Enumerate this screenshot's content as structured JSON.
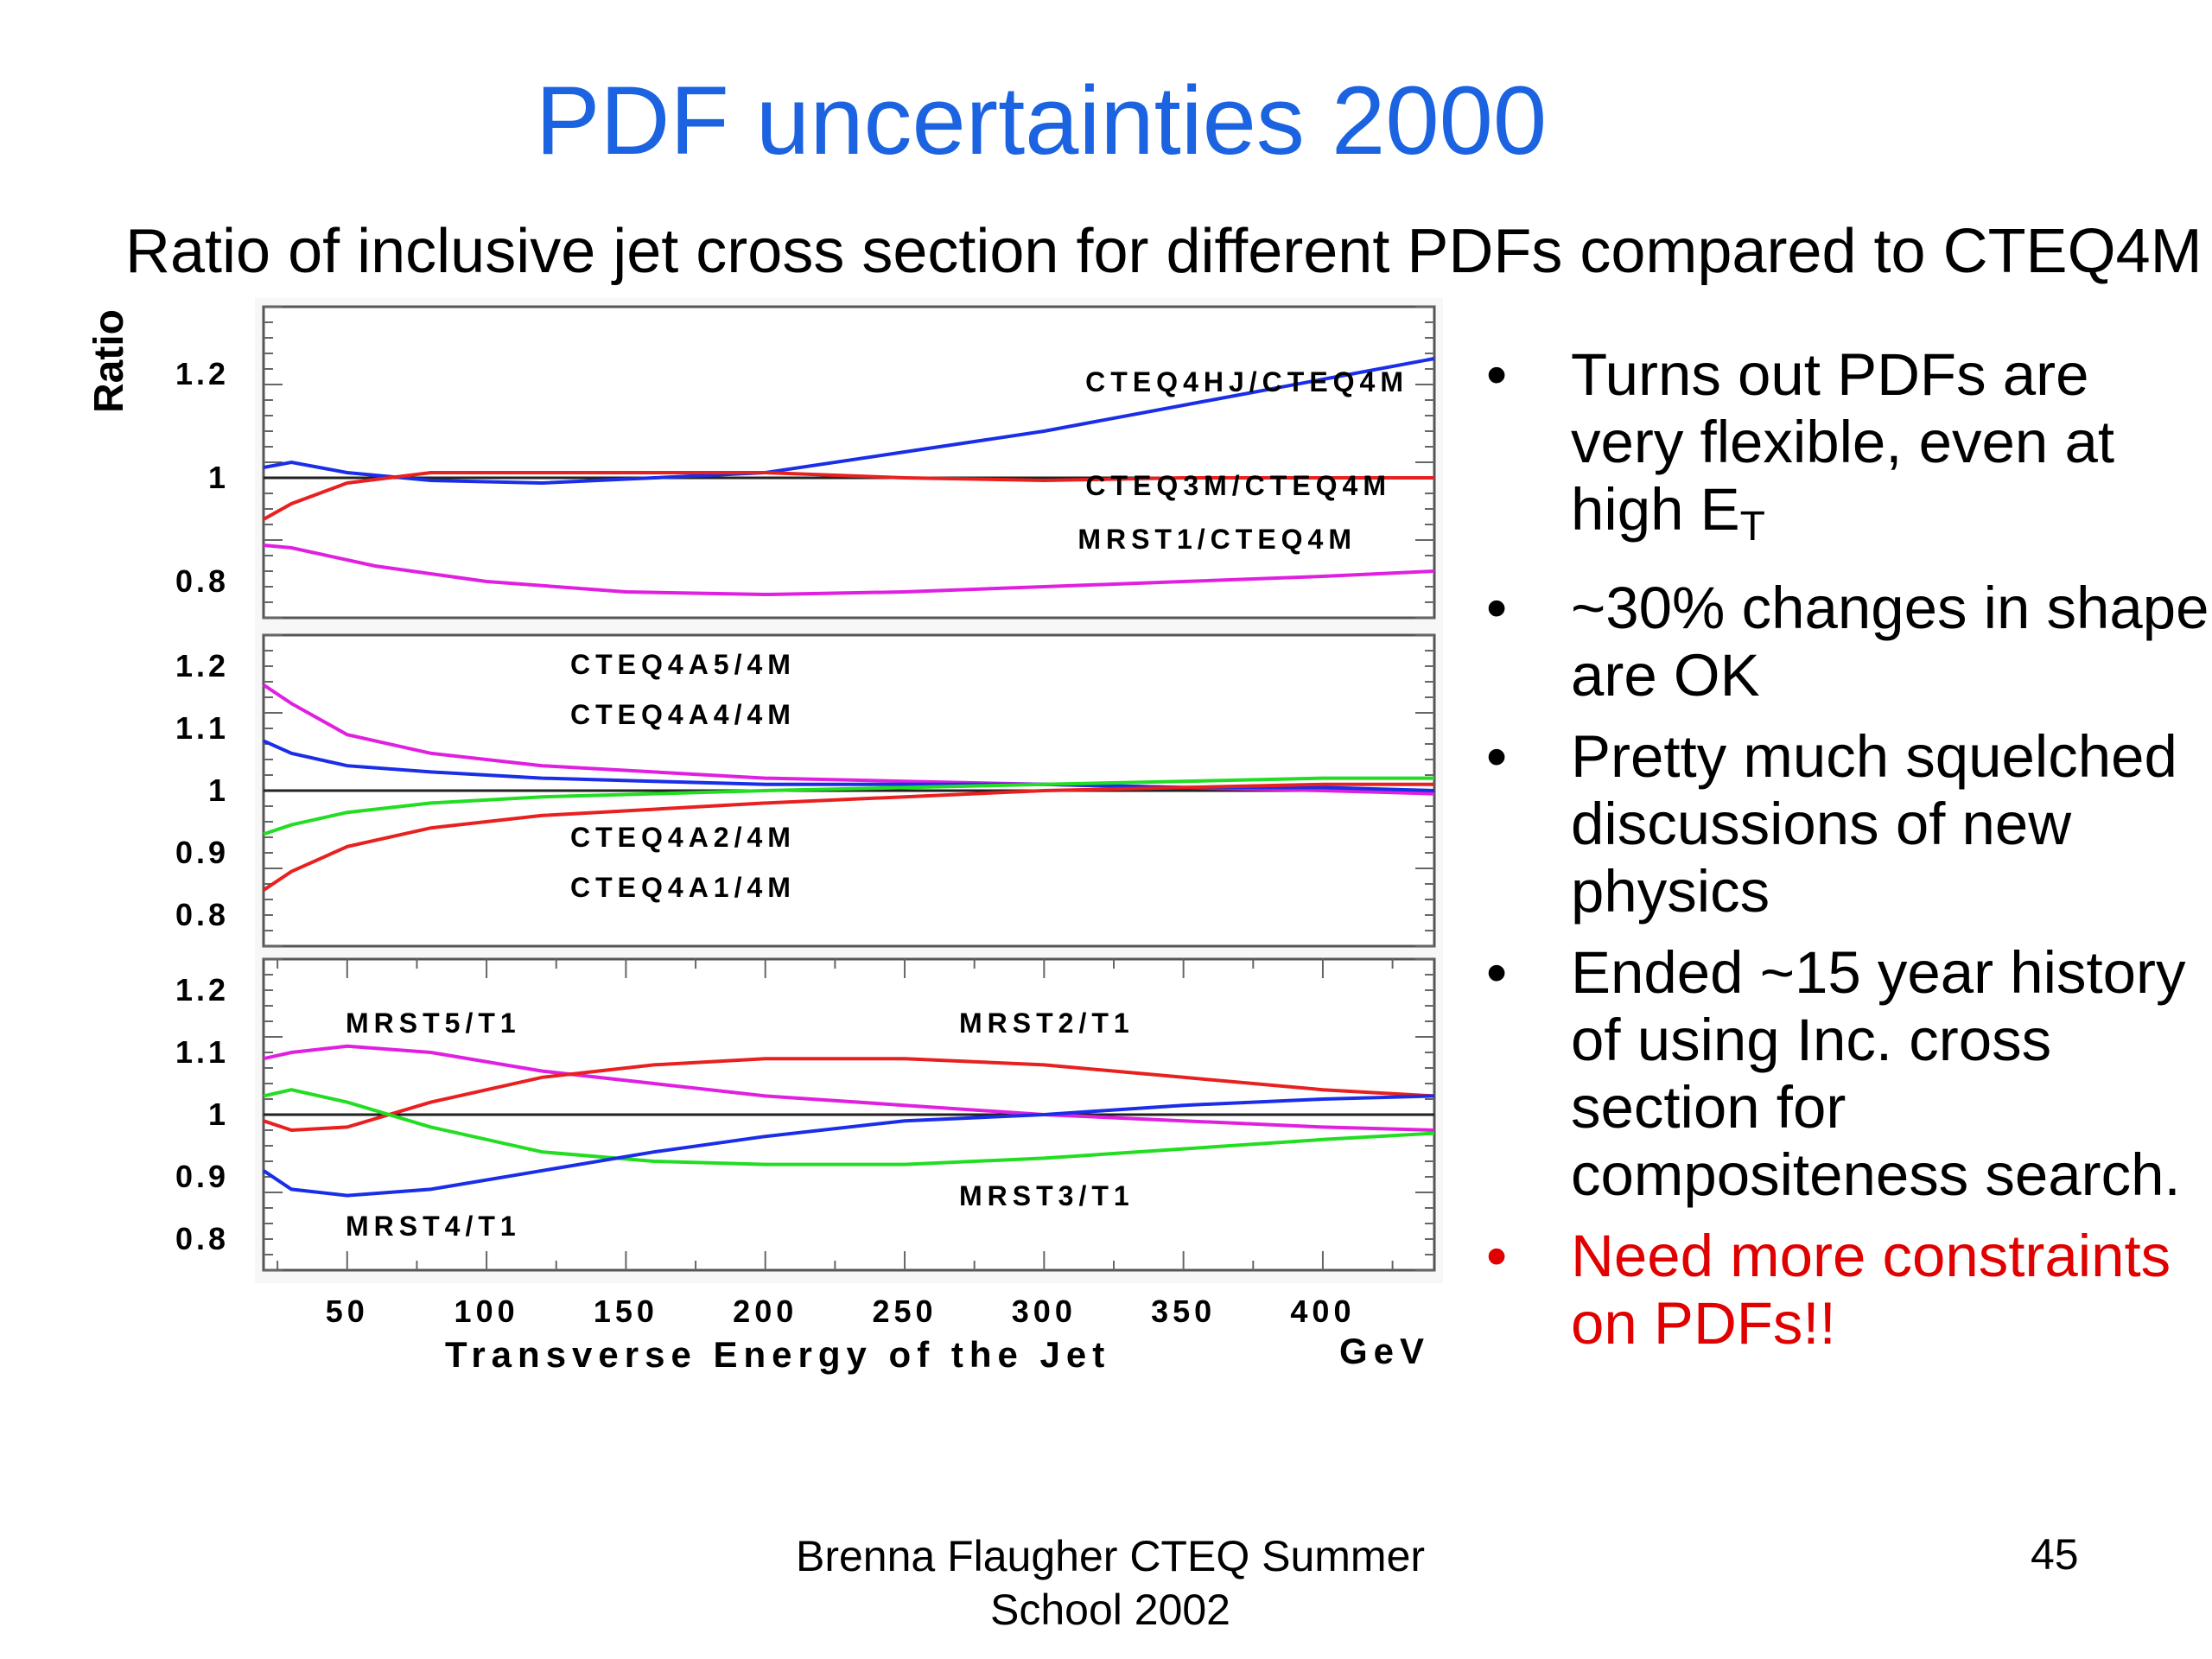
{
  "slide": {
    "title": "PDF uncertainties 2000",
    "subtitle": "Ratio of inclusive jet cross section for different PDFs compared to CTEQ4M",
    "bullets": [
      {
        "text": "Turns out PDFs are very flexible, even at high E",
        "sub": "T",
        "color": "#000000"
      },
      {
        "text": "~30% changes in shape are OK",
        "color": "#000000"
      },
      {
        "text": "Pretty much squelched discussions of new physics",
        "color": "#000000"
      },
      {
        "text": "Ended ~15 year history of using Inc. cross section for compositeness search.",
        "color": "#000000"
      },
      {
        "text": "Need more constraints on PDFs!!",
        "color": "#e00000"
      }
    ],
    "footer": "Brenna Flaugher CTEQ Summer School 2002",
    "page_number": "45"
  },
  "chart_data": [
    {
      "type": "line",
      "ylabel": "Ratio",
      "xlim": [
        20,
        440
      ],
      "ylim": [
        0.73,
        1.33
      ],
      "yticks": [
        0.8,
        1,
        1.2
      ],
      "ytick_labels": [
        "0.8",
        "1",
        "1.2"
      ],
      "reference_line": 1,
      "series": [
        {
          "name": "CTEQ4HJ/CTEQ4M",
          "color": "#1a2ee8",
          "x": [
            20,
            30,
            50,
            80,
            120,
            160,
            200,
            250,
            300,
            350,
            400,
            440
          ],
          "y": [
            1.02,
            1.03,
            1.01,
            0.995,
            0.99,
            1.0,
            1.01,
            1.05,
            1.09,
            1.14,
            1.19,
            1.23
          ]
        },
        {
          "name": "CTEQ3M/CTEQ4M",
          "color": "#e82020",
          "x": [
            20,
            30,
            50,
            80,
            120,
            160,
            200,
            250,
            300,
            350,
            400,
            440
          ],
          "y": [
            0.92,
            0.95,
            0.99,
            1.01,
            1.01,
            1.01,
            1.01,
            1.0,
            0.995,
            1.0,
            1.0,
            1.0
          ]
        },
        {
          "name": "MRST1/CTEQ4M",
          "color": "#e020e0",
          "x": [
            20,
            30,
            60,
            100,
            150,
            200,
            250,
            300,
            350,
            400,
            440
          ],
          "y": [
            0.87,
            0.865,
            0.83,
            0.8,
            0.78,
            0.775,
            0.78,
            0.79,
            0.8,
            0.81,
            0.82
          ]
        }
      ],
      "labels": [
        "CTEQ4HJ/CTEQ4M",
        "CTEQ3M/CTEQ4M",
        "MRST1/CTEQ4M"
      ]
    },
    {
      "type": "line",
      "xlim": [
        20,
        440
      ],
      "ylim": [
        0.75,
        1.25
      ],
      "yticks": [
        0.8,
        0.9,
        1,
        1.1,
        1.2
      ],
      "ytick_labels": [
        "0.8",
        "0.9",
        "1",
        "1.1",
        "1.2"
      ],
      "reference_line": 1,
      "series": [
        {
          "name": "CTEQ4A5/4M",
          "color": "#e020e0",
          "x": [
            20,
            30,
            50,
            80,
            120,
            160,
            200,
            250,
            300,
            350,
            400,
            440
          ],
          "y": [
            1.17,
            1.14,
            1.09,
            1.06,
            1.04,
            1.03,
            1.02,
            1.015,
            1.01,
            1.005,
            1.0,
            0.995
          ]
        },
        {
          "name": "CTEQ4A4/4M",
          "color": "#1a2ee8",
          "x": [
            20,
            30,
            50,
            80,
            120,
            160,
            200,
            250,
            300,
            350,
            400,
            440
          ],
          "y": [
            1.08,
            1.06,
            1.04,
            1.03,
            1.02,
            1.015,
            1.01,
            1.01,
            1.01,
            1.005,
            1.005,
            1.0
          ]
        },
        {
          "name": "CTEQ4A2/4M",
          "color": "#22dd22",
          "x": [
            20,
            30,
            50,
            80,
            120,
            160,
            200,
            250,
            300,
            350,
            400,
            440
          ],
          "y": [
            0.93,
            0.945,
            0.965,
            0.98,
            0.99,
            0.995,
            1.0,
            1.005,
            1.01,
            1.015,
            1.02,
            1.02
          ]
        },
        {
          "name": "CTEQ4A1/4M",
          "color": "#e82020",
          "x": [
            20,
            30,
            50,
            80,
            120,
            160,
            200,
            250,
            300,
            350,
            400,
            440
          ],
          "y": [
            0.84,
            0.87,
            0.91,
            0.94,
            0.96,
            0.97,
            0.98,
            0.99,
            1.0,
            1.005,
            1.01,
            1.01
          ]
        }
      ],
      "labels": [
        "CTEQ4A5/4M",
        "CTEQ4A4/4M",
        "CTEQ4A2/4M",
        "CTEQ4A1/4M"
      ]
    },
    {
      "type": "line",
      "xlabel": "Transverse Energy of the Jet",
      "xunit": "GeV",
      "xlim": [
        20,
        440
      ],
      "ylim": [
        0.75,
        1.25
      ],
      "xticks": [
        50,
        100,
        150,
        200,
        250,
        300,
        350,
        400
      ],
      "xtick_labels": [
        "50",
        "100",
        "150",
        "200",
        "250",
        "300",
        "350",
        "400"
      ],
      "yticks": [
        0.8,
        0.9,
        1,
        1.1,
        1.2
      ],
      "ytick_labels": [
        "0.8",
        "0.9",
        "1",
        "1.1",
        "1.2"
      ],
      "reference_line": 1,
      "series": [
        {
          "name": "MRST5/T1",
          "color": "#e020e0",
          "x": [
            20,
            30,
            50,
            80,
            120,
            160,
            200,
            250,
            300,
            350,
            400,
            440
          ],
          "y": [
            1.09,
            1.1,
            1.11,
            1.1,
            1.07,
            1.05,
            1.03,
            1.015,
            1.0,
            0.99,
            0.98,
            0.975
          ]
        },
        {
          "name": "MRST2/T1",
          "color": "#e82020",
          "x": [
            20,
            30,
            50,
            80,
            120,
            160,
            200,
            250,
            300,
            350,
            400,
            440
          ],
          "y": [
            0.99,
            0.975,
            0.98,
            1.02,
            1.06,
            1.08,
            1.09,
            1.09,
            1.08,
            1.06,
            1.04,
            1.03
          ]
        },
        {
          "name": "MRST3/T1",
          "color": "#22dd22",
          "x": [
            20,
            30,
            50,
            80,
            120,
            160,
            200,
            250,
            300,
            350,
            400,
            440
          ],
          "y": [
            1.03,
            1.04,
            1.02,
            0.98,
            0.94,
            0.925,
            0.92,
            0.92,
            0.93,
            0.945,
            0.96,
            0.97
          ]
        },
        {
          "name": "MRST4/T1",
          "color": "#1a2ee8",
          "x": [
            20,
            30,
            50,
            80,
            120,
            160,
            200,
            250,
            300,
            350,
            400,
            440
          ],
          "y": [
            0.91,
            0.88,
            0.87,
            0.88,
            0.91,
            0.94,
            0.965,
            0.99,
            1.0,
            1.015,
            1.025,
            1.03
          ]
        }
      ],
      "labels": [
        "MRST5/T1",
        "MRST2/T1",
        "MRST3/T1",
        "MRST4/T1"
      ]
    }
  ]
}
